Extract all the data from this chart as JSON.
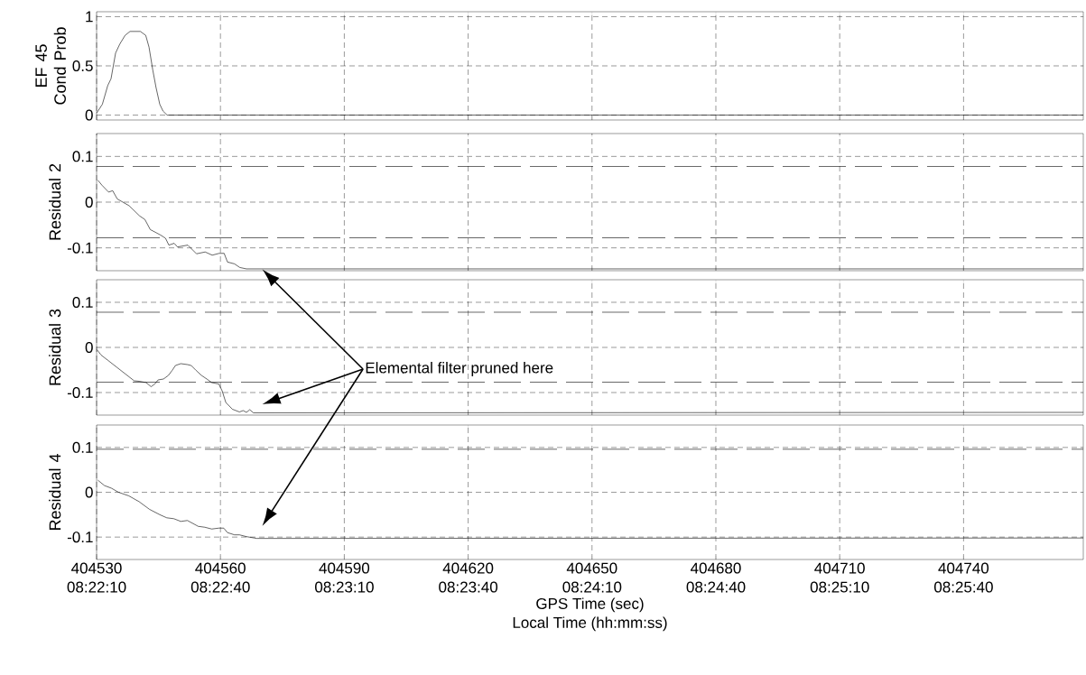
{
  "chart_data": [
    {
      "type": "line",
      "ylabel": "EF 45 Cond Prob",
      "xlim": [
        404530,
        404769
      ],
      "ylim": [
        -0.05,
        1.05
      ],
      "yticks": [
        0,
        0.5,
        1
      ],
      "xticks": [
        404530,
        404560,
        404590,
        404620,
        404650,
        404680,
        404710,
        404740
      ],
      "tick_labels": "y",
      "grid": true,
      "series": [
        {
          "color": "#000000",
          "x": [
            404530,
            404531.4,
            404532.7,
            404533.5,
            404534.6,
            404535.6,
            404536.9,
            404538.1,
            404540.6,
            404541.9,
            404542.7,
            404543.6,
            404544.4,
            404545.3,
            404546.1,
            404547.1,
            404769
          ],
          "values": [
            0.02,
            0.11,
            0.3,
            0.37,
            0.63,
            0.72,
            0.81,
            0.85,
            0.85,
            0.81,
            0.69,
            0.46,
            0.28,
            0.11,
            0.04,
            0,
            0
          ]
        }
      ]
    },
    {
      "type": "line",
      "ylabel": "Residual 2",
      "xlim": [
        404530,
        404769
      ],
      "ylim": [
        -0.15,
        0.15
      ],
      "yticks": [
        -0.1,
        0,
        0.1
      ],
      "xticks": [
        404530,
        404560,
        404590,
        404620,
        404650,
        404680,
        404710,
        404740
      ],
      "tick_labels": "y",
      "grid": true,
      "ref_lines": [
        {
          "axis": "y",
          "value": 0.078,
          "color": "#000000",
          "line_style": "dashed"
        },
        {
          "axis": "y",
          "value": -0.078,
          "color": "#000000",
          "line_style": "dashed"
        }
      ],
      "series": [
        {
          "color": "#000000",
          "x": [
            404530.3,
            404531.3,
            404532.9,
            404533.9,
            404535.0,
            404537.9,
            404540.4,
            404541.7,
            404543.0,
            404545.5,
            404546.7,
            404547.5,
            404548.8,
            404549.6,
            404552.1,
            404554.2,
            404556.3,
            404558.0,
            404559.7,
            404560.9,
            404561.7,
            404563.4,
            404564.7,
            404566.3,
            404769
          ],
          "values": [
            0.048,
            0.037,
            0.022,
            0.025,
            0.007,
            -0.008,
            -0.03,
            -0.038,
            -0.06,
            -0.072,
            -0.079,
            -0.094,
            -0.09,
            -0.098,
            -0.094,
            -0.113,
            -0.109,
            -0.116,
            -0.112,
            -0.112,
            -0.131,
            -0.135,
            -0.143,
            -0.146,
            -0.146
          ]
        }
      ]
    },
    {
      "type": "line",
      "ylabel": "Residual 3",
      "xlim": [
        404530,
        404769
      ],
      "ylim": [
        -0.15,
        0.15
      ],
      "yticks": [
        -0.1,
        0,
        0.1
      ],
      "xticks": [
        404530,
        404560,
        404590,
        404620,
        404650,
        404680,
        404710,
        404740
      ],
      "tick_labels": "y",
      "grid": true,
      "annotations": [
        "Elemental filter pruned here"
      ],
      "ref_lines": [
        {
          "axis": "y",
          "value": 0.078,
          "color": "#000000",
          "line_style": "dashed"
        },
        {
          "axis": "y",
          "value": -0.077,
          "color": "#000000",
          "line_style": "dashed"
        }
      ],
      "series": [
        {
          "color": "#000000",
          "x": [
            404530.1,
            404531.1,
            404532.8,
            404534.9,
            404537.0,
            404539.1,
            404540.3,
            404542.0,
            404543.2,
            404544.1,
            404544.9,
            404546.2,
            404547.4,
            404548.3,
            404549.1,
            404550.4,
            404552.0,
            404552.9,
            404554.1,
            404555.4,
            404556.7,
            404557.9,
            404559.6,
            404560.4,
            404561.3,
            404562.9,
            404564.6,
            404565.5,
            404566.3,
            404567.1,
            404568.0,
            404769
          ],
          "values": [
            -0.005,
            -0.017,
            -0.029,
            -0.044,
            -0.059,
            -0.074,
            -0.075,
            -0.078,
            -0.087,
            -0.081,
            -0.072,
            -0.07,
            -0.062,
            -0.051,
            -0.04,
            -0.036,
            -0.038,
            -0.04,
            -0.051,
            -0.062,
            -0.07,
            -0.078,
            -0.081,
            -0.096,
            -0.122,
            -0.137,
            -0.143,
            -0.14,
            -0.144,
            -0.138,
            -0.145,
            -0.144
          ]
        }
      ]
    },
    {
      "type": "line",
      "ylabel": "Residual 4",
      "xlabel": "GPS Time (sec)",
      "xlim": [
        404530,
        404769
      ],
      "ylim": [
        -0.15,
        0.15
      ],
      "yticks": [
        -0.1,
        0,
        0.1
      ],
      "grid": true,
      "xticks": [
        404530,
        404560,
        404590,
        404620,
        404650,
        404680,
        404710,
        404740
      ],
      "x2label": "Local Time (hh:mm:ss)",
      "x2lim": [
        8.36944,
        8.43583
      ],
      "x2ticks": [
        {
          "value": 8.369444,
          "label": "08:22:10"
        },
        {
          "value": 8.377778,
          "label": "08:22:40"
        },
        {
          "value": 8.386111,
          "label": "08:23:10"
        },
        {
          "value": 8.394444,
          "label": "08:23:40"
        },
        {
          "value": 8.402778,
          "label": "08:24:10"
        },
        {
          "value": 8.411111,
          "label": "08:24:40"
        },
        {
          "value": 8.419444,
          "label": "08:25:10"
        },
        {
          "value": 8.427778,
          "label": "08:25:40"
        }
      ],
      "ref_lines": [
        {
          "axis": "y",
          "value": 0.096,
          "color": "#000000",
          "line_style": "dashed"
        }
      ],
      "series": [
        {
          "color": "#000000",
          "x": [
            404530.3,
            404531.9,
            404533.6,
            404535.3,
            404537.8,
            404540.3,
            404542.8,
            404545.3,
            404547.0,
            404548.7,
            404550.4,
            404552.0,
            404554.6,
            404556.2,
            404557.9,
            404559.6,
            404560.8,
            404561.7,
            404563.4,
            404564.6,
            404566.3,
            404568.8,
            404769
          ],
          "values": [
            0.027,
            0.015,
            0.009,
            0,
            -0.008,
            -0.021,
            -0.038,
            -0.05,
            -0.057,
            -0.059,
            -0.065,
            -0.063,
            -0.076,
            -0.078,
            -0.082,
            -0.08,
            -0.08,
            -0.09,
            -0.095,
            -0.095,
            -0.099,
            -0.103,
            -0.102
          ]
        }
      ]
    }
  ]
}
